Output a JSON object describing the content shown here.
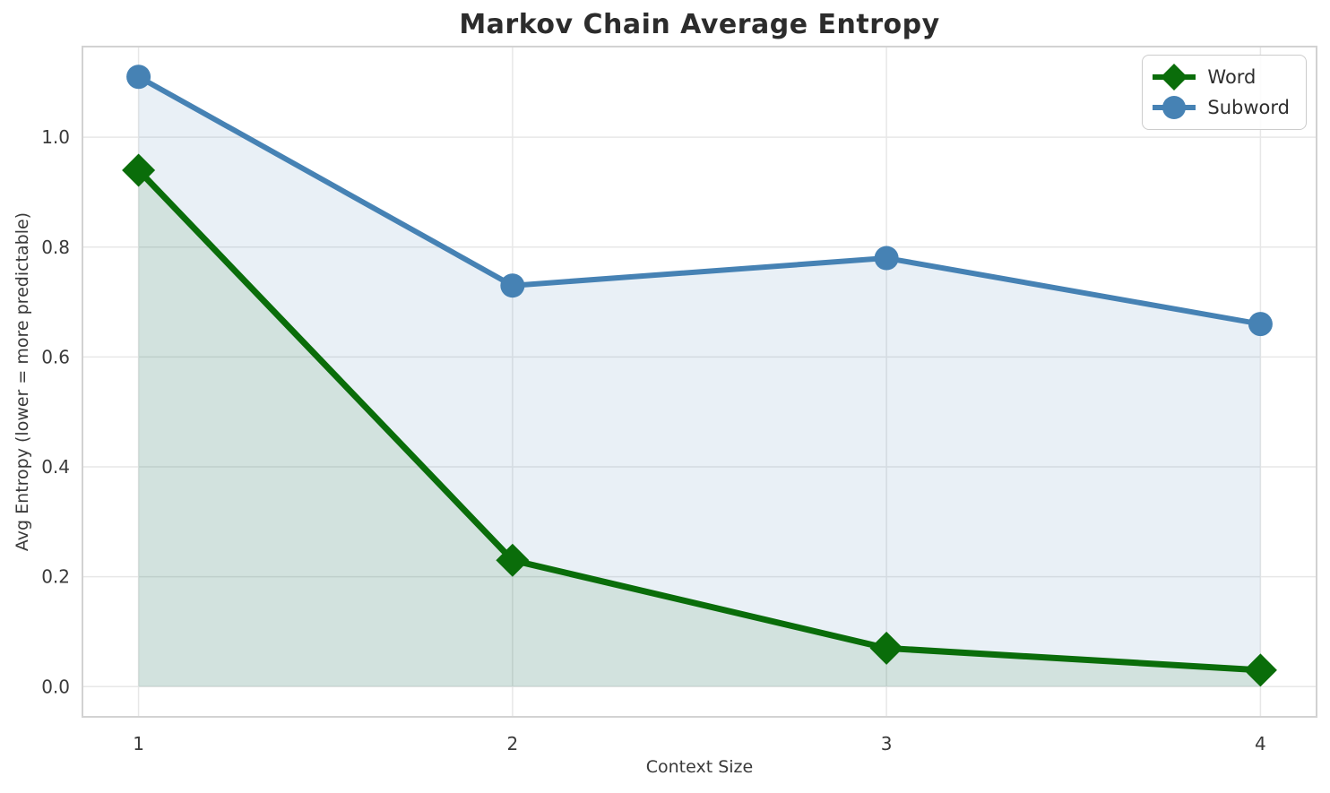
{
  "figure": {
    "title": "Markov Chain Average Entropy",
    "xlabel": "Context Size",
    "ylabel": "Avg Entropy (lower = more predictable)"
  },
  "chart_data": {
    "type": "line",
    "title": "Markov Chain Average Entropy",
    "xlabel": "Context Size",
    "ylabel": "Avg Entropy (lower = more predictable)",
    "x": [
      1,
      2,
      3,
      4
    ],
    "series": [
      {
        "name": "Word",
        "values": [
          0.94,
          0.23,
          0.07,
          0.03
        ],
        "color": "#0a6d0a",
        "marker": "diamond",
        "line_width": 7,
        "area_fill": true,
        "fill_alpha": 0.1
      },
      {
        "name": "Subword",
        "values": [
          1.11,
          0.73,
          0.78,
          0.66
        ],
        "color": "#4682b4",
        "marker": "circle",
        "line_width": 6,
        "area_fill": true,
        "fill_alpha": 0.12
      }
    ],
    "xticks": [
      "1",
      "2",
      "3",
      "4"
    ],
    "ytick_values": [
      0.0,
      0.2,
      0.4,
      0.6,
      0.8,
      1.0
    ],
    "ytick_labels": [
      "0.0",
      "0.2",
      "0.4",
      "0.6",
      "0.8",
      "1.0"
    ],
    "xlim": [
      0.85,
      4.15
    ],
    "ylim": [
      -0.055,
      1.165
    ],
    "grid": true,
    "legend_position": "upper right"
  },
  "style": {
    "grid_color": "#e7e7e7",
    "spine_color": "#d2d2d2",
    "tick_text_color": "#3a3a3a",
    "title_color": "#2c2c2c",
    "background": "#ffffff"
  }
}
